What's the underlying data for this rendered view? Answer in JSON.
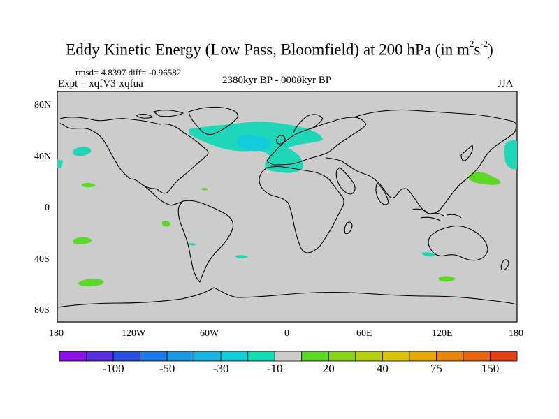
{
  "title": {
    "text": "Eddy Kinetic Energy (Low Pass, Bloomfield) at 200 hPa (in m",
    "sup1": "2",
    "mid": "s",
    "sup2": "-2",
    "end": ")"
  },
  "stats": "rmsd= 4.8397 diff= -0.96582",
  "expt": "Expt = xqfV3-xqfua",
  "period": "2380kyr BP - 0000kyr BP",
  "season": "JJA",
  "axes": {
    "lat_labels": [
      "80N",
      "40N",
      "0",
      "40S",
      "80S"
    ],
    "lon_labels": [
      "180",
      "120W",
      "60W",
      "0",
      "60E",
      "120E",
      "180"
    ]
  },
  "colorbar": {
    "colors": [
      "#8a12e6",
      "#5a2ee0",
      "#2a4fe0",
      "#1e78e6",
      "#1a98e0",
      "#18b4e2",
      "#12ccdc",
      "#12dcb4",
      "#cccccc",
      "#5cd826",
      "#88d418",
      "#b4d010",
      "#d8c40c",
      "#e6a80a",
      "#e8860c",
      "#e66410",
      "#e04014"
    ],
    "labels": [
      "-100",
      "-50",
      "-30",
      "-10",
      "20",
      "40",
      "75",
      "150"
    ]
  },
  "map": {
    "ocean_color": "#cccccc",
    "negative_color": "#20d6b8",
    "positive_color": "#5cd826"
  }
}
